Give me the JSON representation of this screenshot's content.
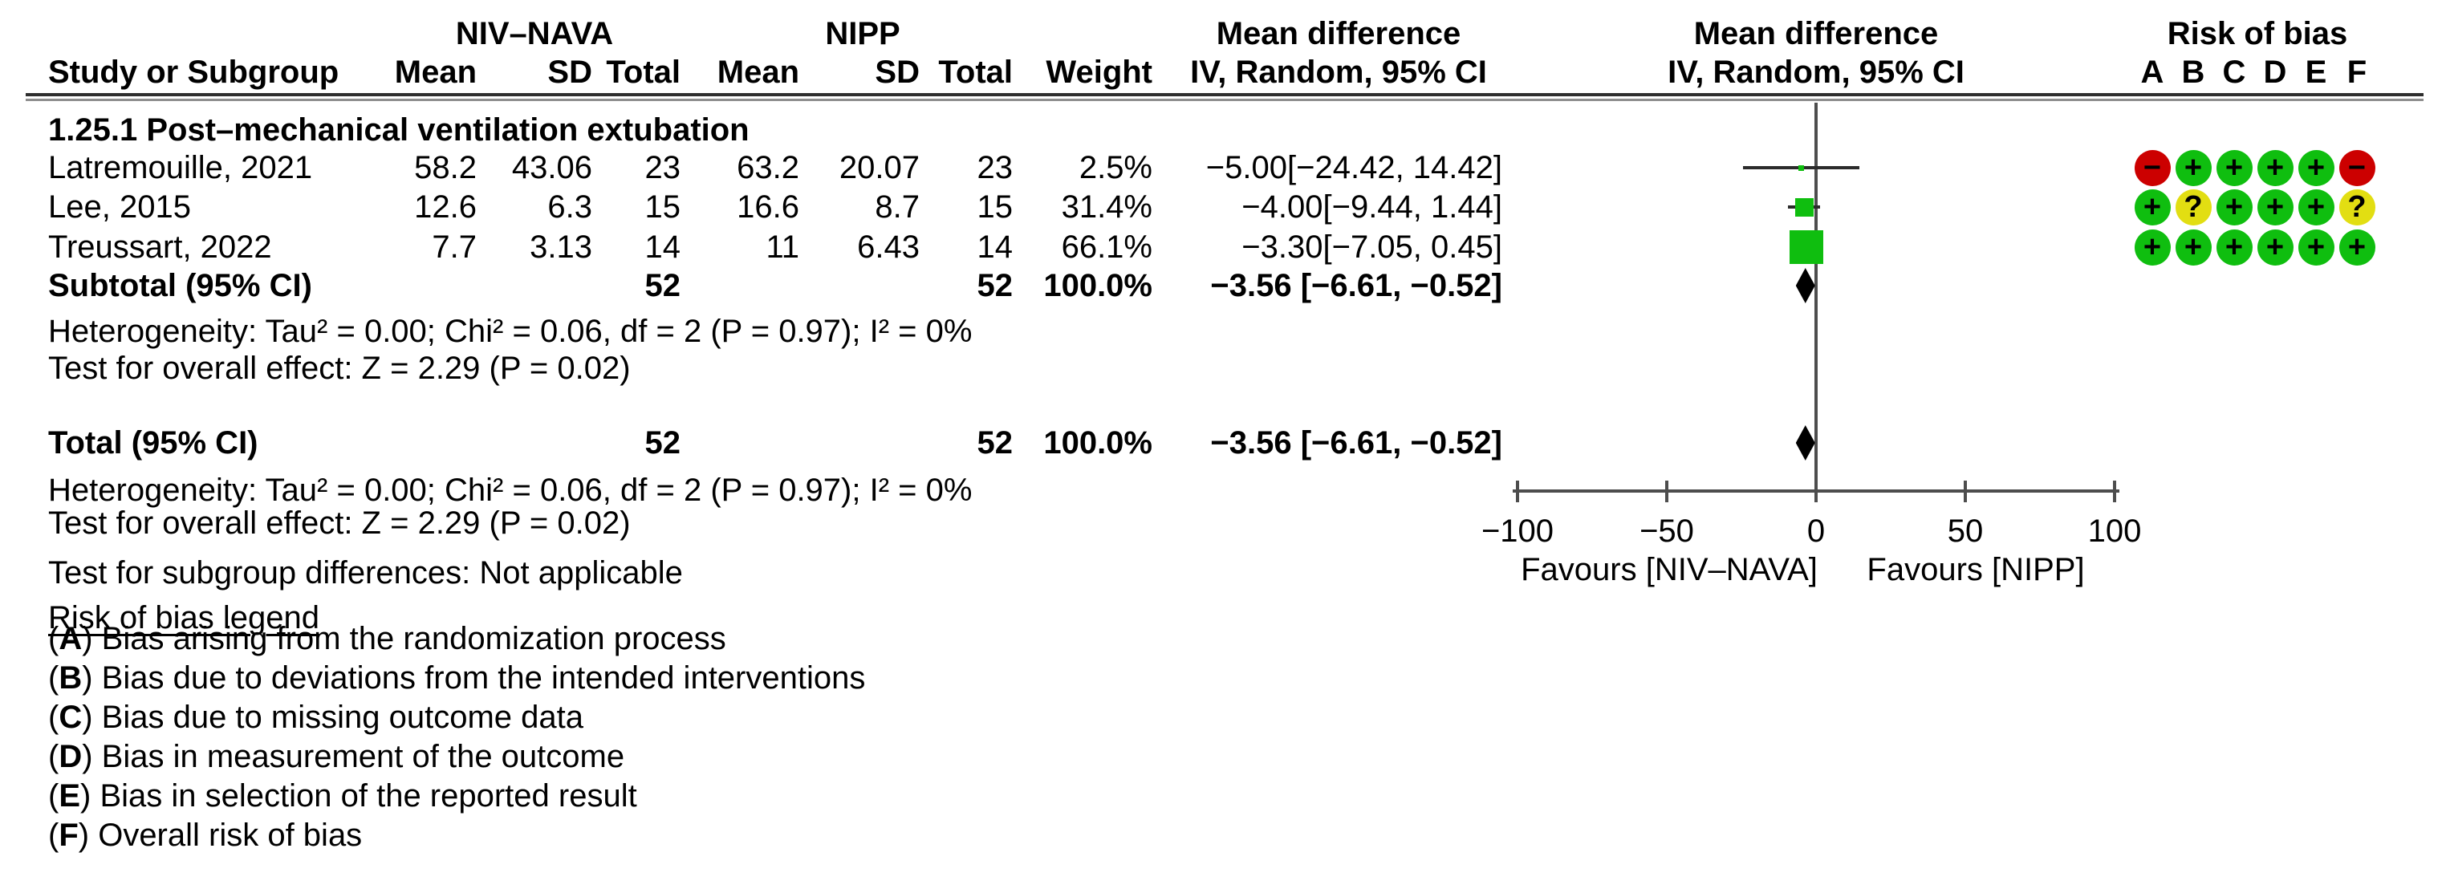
{
  "figure": {
    "group1": "NIV–NAVA",
    "group2": "NIPP",
    "md_header": "Mean difference",
    "iv_header": "IV, Random, 95% CI",
    "rob_header": "Risk of bias",
    "col_study": "Study or Subgroup",
    "col_mean": "Mean",
    "col_sd": "SD",
    "col_total": "Total",
    "col_weight": "Weight",
    "subgroup_title": "1.25.1 Post–mechanical ventilation extubation"
  },
  "table": {
    "studies": [
      {
        "name": "Latremouille, 2021",
        "mean1": "58.2",
        "sd1": "43.06",
        "total1": "23",
        "mean2": "63.2",
        "sd2": "20.07",
        "total2": "23",
        "weight": "2.5%",
        "ci_text": "−5.00[−24.42, 14.42]",
        "bias": [
          "minus",
          "plus",
          "plus",
          "plus",
          "plus",
          "minus"
        ]
      },
      {
        "name": "Lee, 2015",
        "mean1": "12.6",
        "sd1": "6.3",
        "total1": "15",
        "mean2": "16.6",
        "sd2": "8.7",
        "total2": "15",
        "weight": "31.4%",
        "ci_text": "−4.00[−9.44, 1.44]",
        "bias": [
          "plus",
          "question",
          "plus",
          "plus",
          "plus",
          "question"
        ]
      },
      {
        "name": "Treussart, 2022",
        "mean1": "7.7",
        "sd1": "3.13",
        "total1": "14",
        "mean2": "11",
        "sd2": "6.43",
        "total2": "14",
        "weight": "66.1%",
        "ci_text": "−3.30[−7.05, 0.45]",
        "bias": [
          "plus",
          "plus",
          "plus",
          "plus",
          "plus",
          "plus"
        ]
      }
    ],
    "subtotal": {
      "label": "Subtotal (95% CI)",
      "total1": "52",
      "total2": "52",
      "weight": "100.0%",
      "ci_text": "−3.56 [−6.61, −0.52]"
    },
    "heterogeneity1": "Heterogeneity: Tau² = 0.00; Chi² = 0.06, df = 2 (P = 0.97); I² = 0%",
    "overall_effect1": "Test for overall effect: Z = 2.29 (P = 0.02)",
    "total": {
      "label": "Total (95% CI)",
      "total1": "52",
      "total2": "52",
      "weight": "100.0%",
      "ci_text": "−3.56 [−6.61, −0.52]"
    },
    "heterogeneity2": "Heterogeneity: Tau² = 0.00; Chi² = 0.06, df = 2 (P = 0.97); I² = 0%",
    "overall_effect2": "Test for overall effect: Z = 2.29 (P = 0.02)",
    "subgroup_diff": "Test for subgroup differences: Not applicable"
  },
  "chart_data": {
    "type": "forest",
    "effect_measure": "Mean difference, IV, Random, 95% CI",
    "x_axis": {
      "min": -100,
      "max": 100,
      "ticks": [
        -100,
        -50,
        0,
        50,
        100
      ],
      "tick_labels": [
        "−100",
        "−50",
        "0",
        "50",
        "100"
      ],
      "left_label": "Favours [NIV–NAVA]",
      "right_label": "Favours [NIPP]"
    },
    "studies": [
      {
        "name": "Latremouille, 2021",
        "md": -5.0,
        "ci_low": -24.42,
        "ci_high": 14.42,
        "weight_pct": 2.5
      },
      {
        "name": "Lee, 2015",
        "md": -4.0,
        "ci_low": -9.44,
        "ci_high": 1.44,
        "weight_pct": 31.4
      },
      {
        "name": "Treussart, 2022",
        "md": -3.3,
        "ci_low": -7.05,
        "ci_high": 0.45,
        "weight_pct": 66.1
      }
    ],
    "subtotal": {
      "md": -3.56,
      "ci_low": -6.61,
      "ci_high": -0.52
    },
    "total": {
      "md": -3.56,
      "ci_low": -6.61,
      "ci_high": -0.52
    },
    "colors": {
      "square": "#0fbe0f",
      "ci_line": "#2b2b2b",
      "diamond": "#000000",
      "axis": "#4d4d4d"
    }
  },
  "risk_of_bias": {
    "columns": [
      "A",
      "B",
      "C",
      "D",
      "E",
      "F"
    ],
    "symbols": {
      "plus": "+",
      "minus": "−",
      "question": "?"
    },
    "colors": {
      "plus": "#0fbe0f",
      "minus": "#cc0000",
      "question": "#e2de12"
    },
    "legend_title": "Risk of bias legend",
    "legend": [
      {
        "letter": "A",
        "text": "Bias arising from the randomization process"
      },
      {
        "letter": "B",
        "text": "Bias due to deviations from the intended interventions"
      },
      {
        "letter": "C",
        "text": "Bias due to missing outcome data"
      },
      {
        "letter": "D",
        "text": "Bias in measurement of the outcome"
      },
      {
        "letter": "E",
        "text": "Bias in selection of the reported result"
      },
      {
        "letter": "F",
        "text": "Overall risk of bias"
      }
    ]
  }
}
